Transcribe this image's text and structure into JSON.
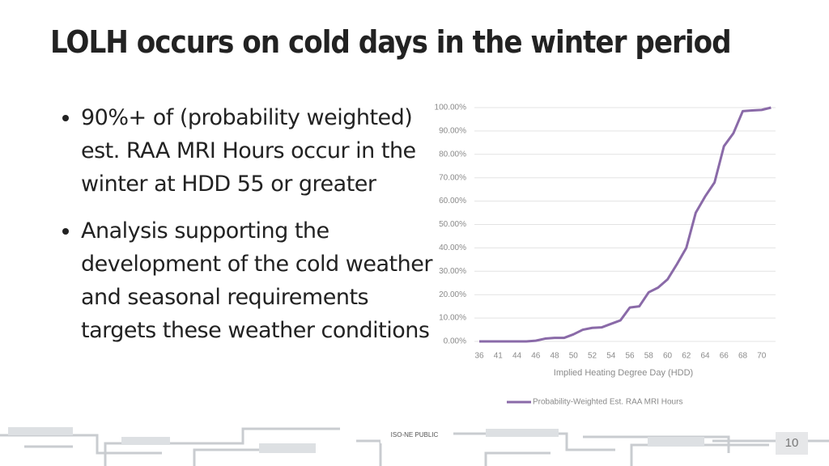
{
  "header": {
    "title": "LOLH occurs on cold days in the winter period"
  },
  "bullets": [
    "90%+ of (probability weighted) est. RAA MRI Hours occur in the winter at HDD 55 or greater",
    "Analysis supporting the development of the cold weather and seasonal requirements targets these weather conditions"
  ],
  "footer": {
    "label": "ISO-NE PUBLIC",
    "page": "10"
  },
  "chart_data": {
    "type": "line",
    "x_label": "Implied Heating Degree Day (HDD)",
    "categories": [
      "36",
      null,
      "41",
      null,
      "44",
      null,
      "46",
      null,
      "48",
      null,
      "50",
      null,
      "52",
      null,
      "54",
      null,
      "56",
      null,
      "58",
      null,
      "60",
      null,
      "62",
      null,
      "64",
      null,
      "66",
      null,
      "68",
      null,
      "70",
      null
    ],
    "series": [
      {
        "name": "Probability-Weighted Est. RAA MRI Hours",
        "color": "#8a6aa8",
        "values": [
          0,
          0,
          0,
          0,
          0,
          0,
          0.3,
          1.2,
          1.5,
          1.5,
          3,
          5,
          5.8,
          6,
          7.5,
          9,
          14.5,
          15,
          21,
          23,
          26.5,
          33,
          40,
          55,
          62,
          68,
          83.5,
          89,
          98.5,
          98.8,
          99,
          100
        ]
      }
    ],
    "ylim": [
      0,
      100
    ],
    "yticks": [
      {
        "value": 0,
        "label": "0.00%"
      },
      {
        "value": 10,
        "label": "10.00%"
      },
      {
        "value": 20,
        "label": "20.00%"
      },
      {
        "value": 30,
        "label": "30.00%"
      },
      {
        "value": 40,
        "label": "40.00%"
      },
      {
        "value": 50,
        "label": "50.00%"
      },
      {
        "value": 60,
        "label": "60.00%"
      },
      {
        "value": 70,
        "label": "70.00%"
      },
      {
        "value": 80,
        "label": "80.00%"
      },
      {
        "value": 90,
        "label": "90.00%"
      },
      {
        "value": 100,
        "label": "100.00%"
      }
    ],
    "grid": true,
    "legend": "bottom"
  }
}
